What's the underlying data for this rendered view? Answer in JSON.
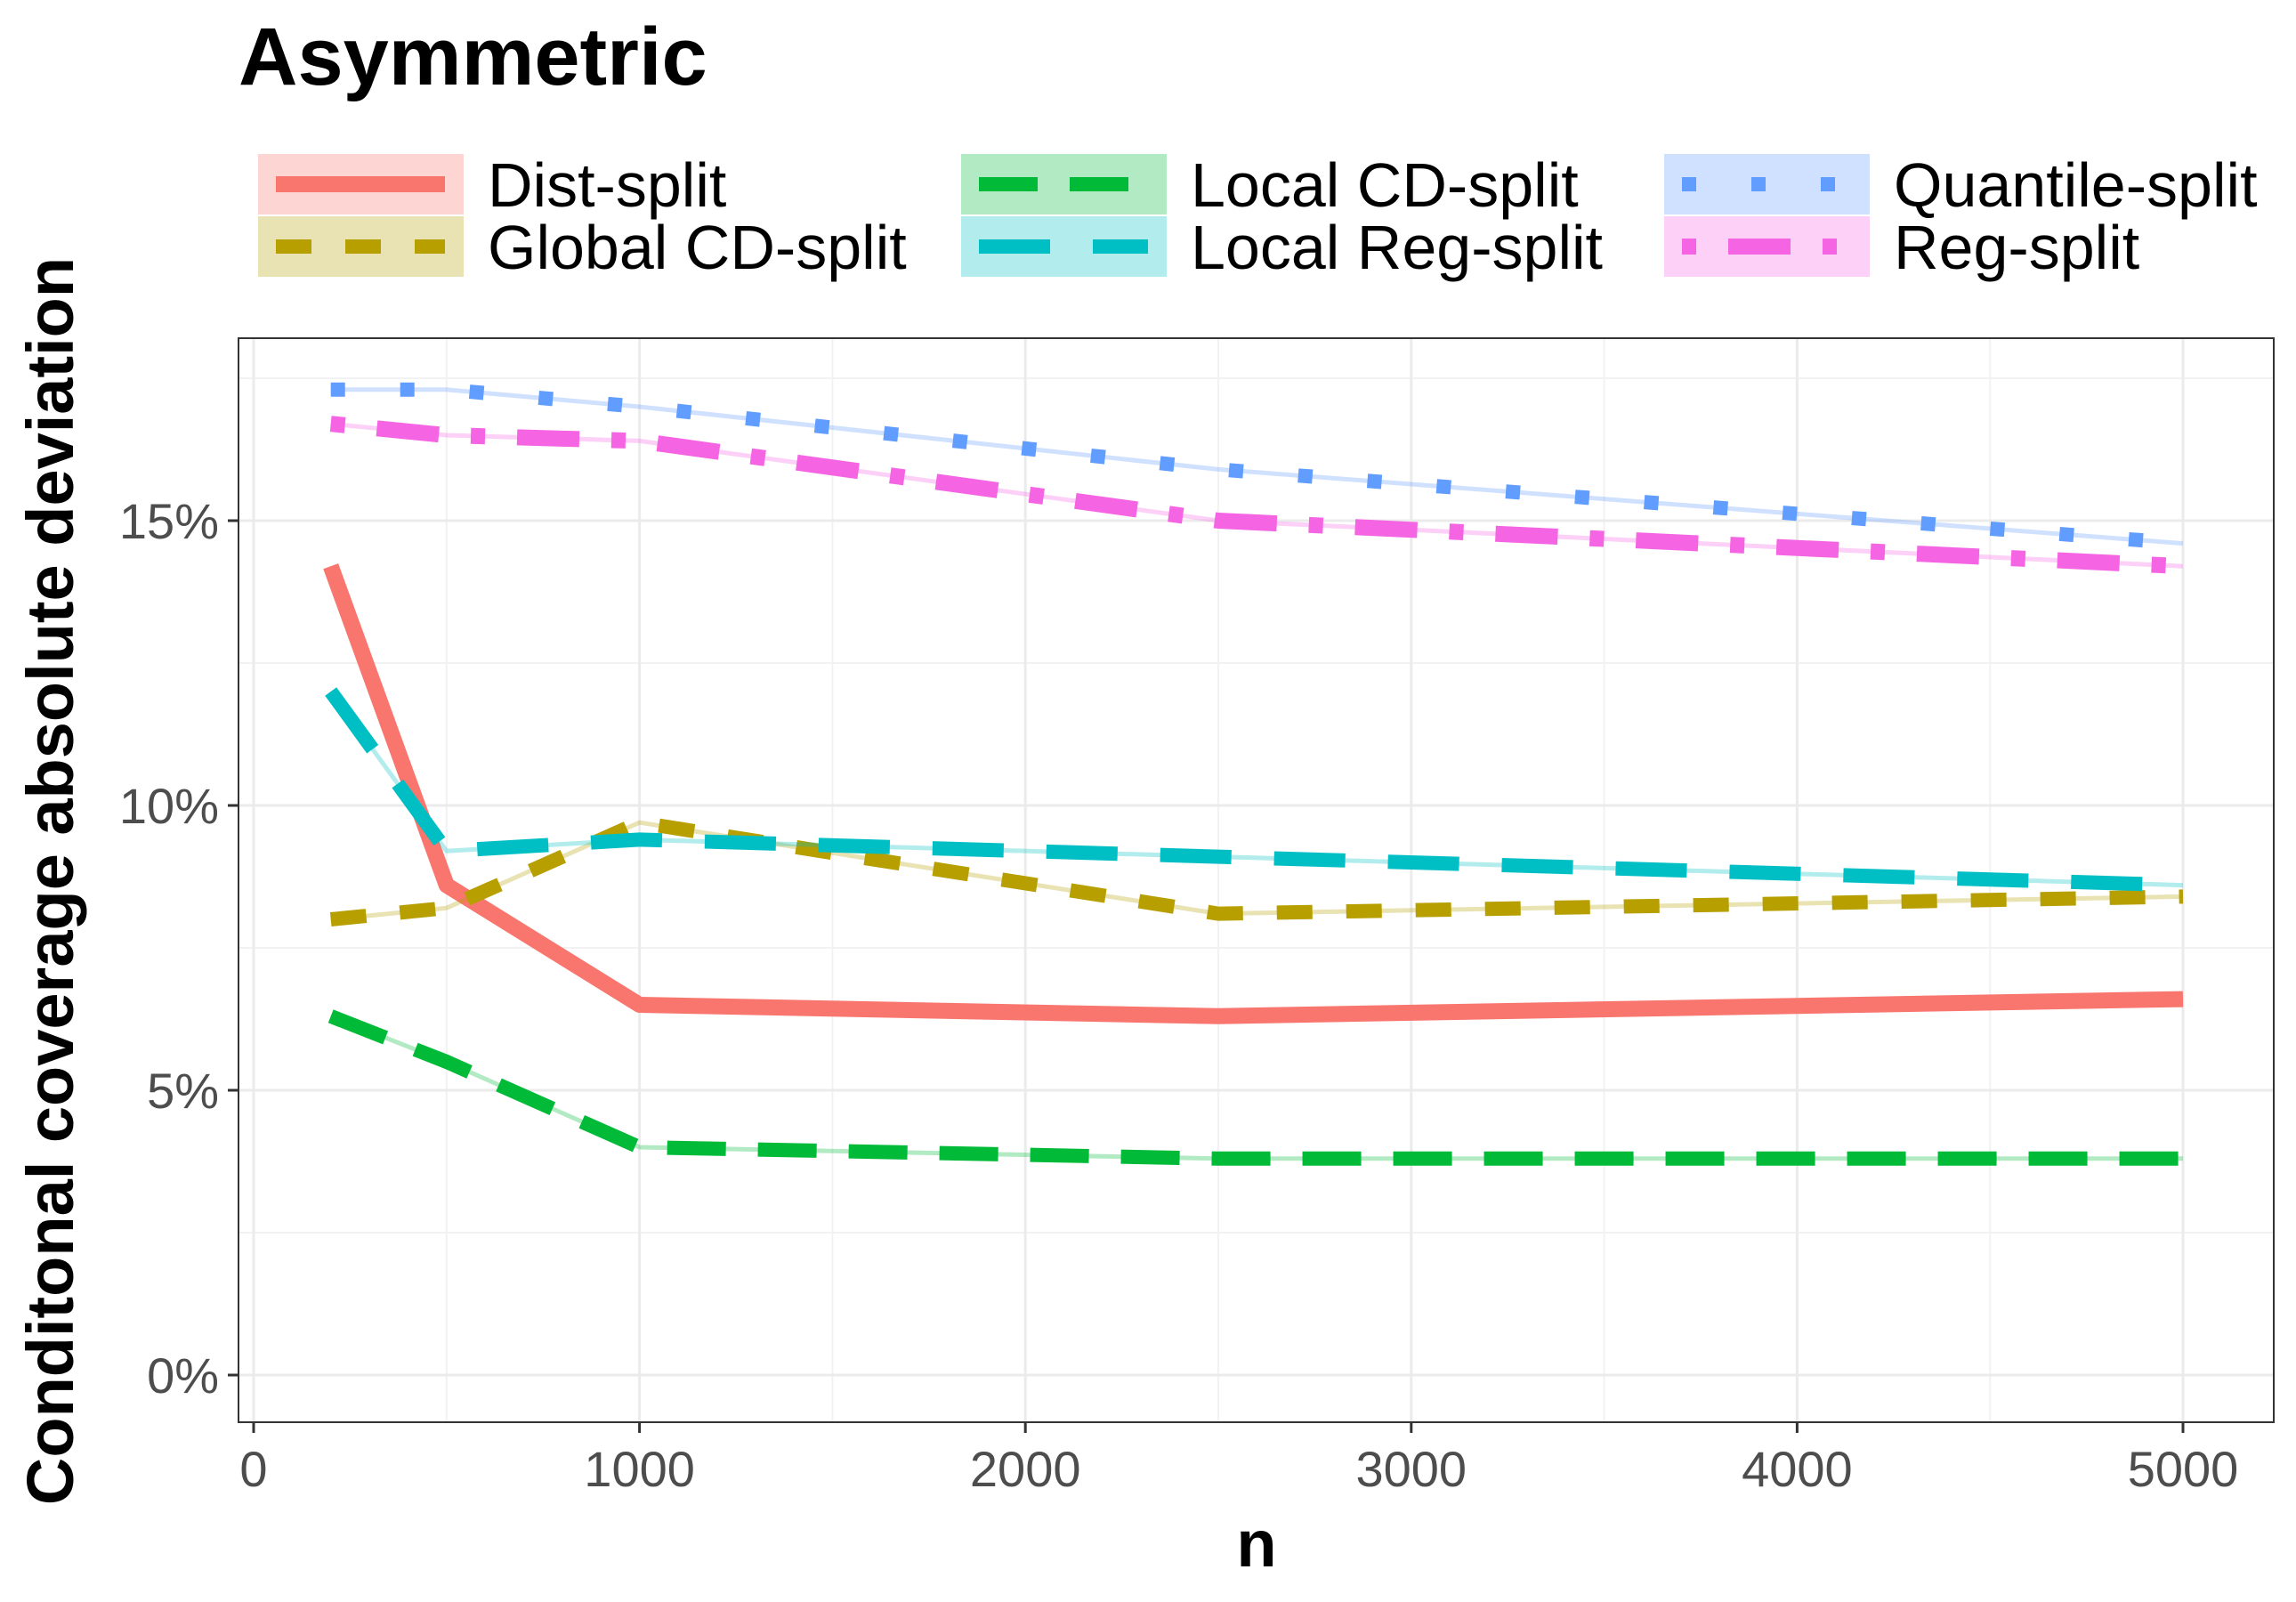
{
  "chart_data": {
    "type": "line",
    "title": "Asymmetric",
    "xlabel": "n",
    "ylabel": "Conditonal coverage absolute deviation",
    "xlim": [
      0,
      5000
    ],
    "ylim": [
      0,
      0.18
    ],
    "x_ticks": [
      0,
      1000,
      2000,
      3000,
      4000,
      5000
    ],
    "x_tick_labels": [
      "0",
      "1000",
      "2000",
      "3000",
      "4000",
      "5000"
    ],
    "y_ticks": [
      0,
      0.05,
      0.1,
      0.15
    ],
    "y_tick_labels": [
      "0%",
      "5%",
      "10%",
      "15%"
    ],
    "grid": true,
    "legend_position": "top",
    "x": [
      200,
      500,
      1000,
      2500,
      5000
    ],
    "series": [
      {
        "name": "Dist-split",
        "color": "#F8766D",
        "dash": "solid",
        "values": [
          0.142,
          0.086,
          0.065,
          0.063,
          0.066
        ]
      },
      {
        "name": "Global CD-split",
        "color": "#B79F00",
        "dash": "dashed",
        "values": [
          0.08,
          0.082,
          0.097,
          0.081,
          0.084
        ]
      },
      {
        "name": "Local CD-split",
        "color": "#00BA38",
        "dash": "longdash",
        "values": [
          0.063,
          0.055,
          0.04,
          0.038,
          0.038
        ]
      },
      {
        "name": "Local Reg-split",
        "color": "#00BFC4",
        "dash": "longdash2",
        "values": [
          0.12,
          0.092,
          0.094,
          0.091,
          0.086
        ]
      },
      {
        "name": "Quantile-split",
        "color": "#619CFF",
        "dash": "dotted",
        "values": [
          0.173,
          0.173,
          0.17,
          0.159,
          0.146
        ]
      },
      {
        "name": "Reg-split",
        "color": "#F564E3",
        "dash": "dotdash",
        "values": [
          0.167,
          0.165,
          0.164,
          0.15,
          0.142
        ]
      }
    ]
  }
}
